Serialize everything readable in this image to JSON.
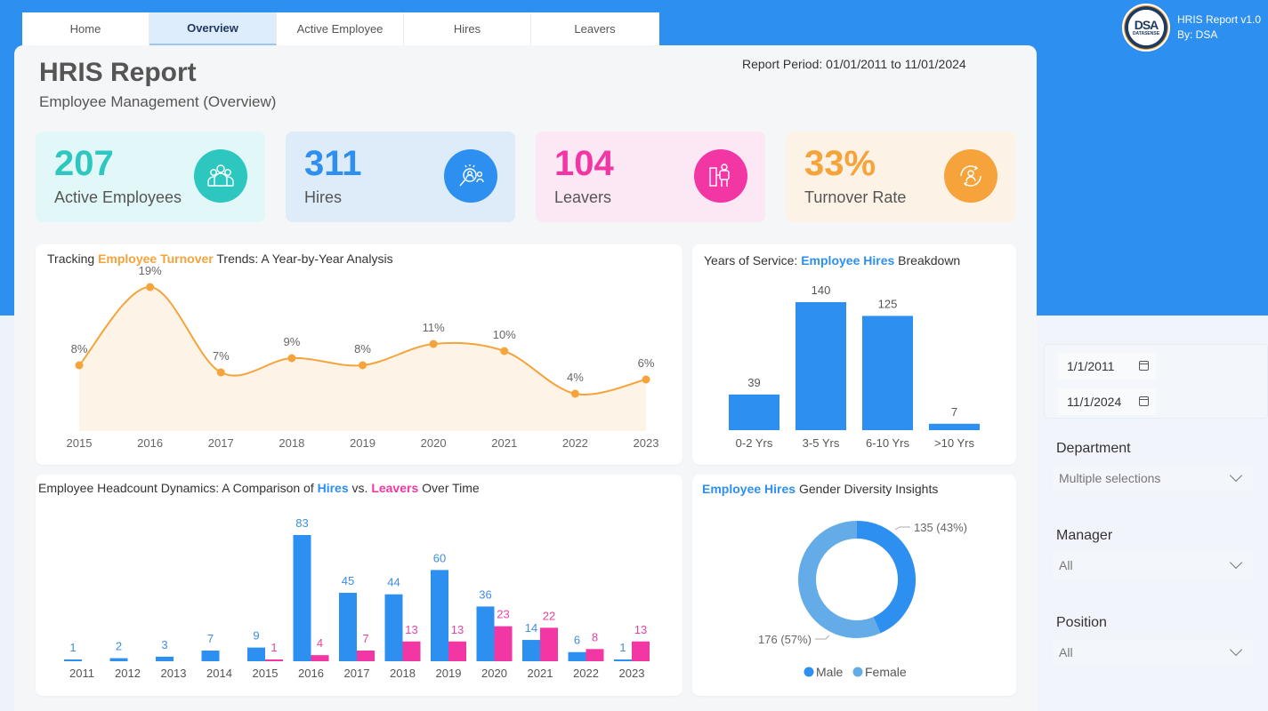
{
  "tabs": [
    {
      "label": "Home",
      "active": false
    },
    {
      "label": "Overview",
      "active": true
    },
    {
      "label": "Active Employee",
      "active": false
    },
    {
      "label": "Hires",
      "active": false
    },
    {
      "label": "Leavers",
      "active": false
    }
  ],
  "brand": {
    "logo_text": "DSA",
    "logo_sub": "DATASENSE",
    "app_name": "HRIS Report v1.0",
    "author": "By: DSA"
  },
  "header": {
    "title": "HRIS Report",
    "subtitle": "Employee Management (Overview)",
    "report_period": "Report Period: 01/01/2011 to 11/01/2024"
  },
  "kpis": [
    {
      "value": "207",
      "label": "Active Employees",
      "icon": "team-icon",
      "color": "#2ec7c0",
      "bg": "#e2f8f8"
    },
    {
      "value": "311",
      "label": "Hires",
      "icon": "recruit-search-icon",
      "color": "#2d8ff0",
      "bg": "#deebf9"
    },
    {
      "value": "104",
      "label": "Leavers",
      "icon": "exit-door-icon",
      "color": "#f236a3",
      "bg": "#fce8f4"
    },
    {
      "value": "33%",
      "label": "Turnover Rate",
      "icon": "turnover-cycle-icon",
      "color": "#f5a33a",
      "bg": "#fdf2e6"
    }
  ],
  "colors": {
    "hires": "#2d8ff0",
    "leavers": "#f236a3",
    "turnover": "#f5a33a",
    "female": "#63ace8"
  },
  "chart_data": [
    {
      "type": "area",
      "title_parts": [
        "Tracking ",
        "Employee Turnover",
        " Trends: A Year-by-Year Analysis"
      ],
      "categories": [
        "2015",
        "2016",
        "2017",
        "2018",
        "2019",
        "2020",
        "2021",
        "2022",
        "2023"
      ],
      "values": [
        8,
        19,
        7,
        9,
        8,
        11,
        10,
        4,
        6
      ],
      "labels": [
        "8%",
        "19%",
        "7%",
        "9%",
        "8%",
        "11%",
        "10%",
        "4%",
        "6%"
      ],
      "unit": "%",
      "grid": false
    },
    {
      "type": "bar",
      "title_parts": [
        "Years of Service: ",
        "Employee Hires",
        " Breakdown"
      ],
      "categories": [
        "0-2 Yrs",
        "3-5 Yrs",
        "6-10 Yrs",
        ">10 Yrs"
      ],
      "values": [
        39,
        140,
        125,
        7
      ],
      "grid": false
    },
    {
      "type": "bar",
      "title_parts": [
        "Employee Headcount Dynamics: A Comparison of ",
        "Hires",
        " vs. ",
        "Leavers",
        " Over Time"
      ],
      "categories": [
        "2011",
        "2012",
        "2013",
        "2014",
        "2015",
        "2016",
        "2017",
        "2018",
        "2019",
        "2020",
        "2021",
        "2022",
        "2023"
      ],
      "series": [
        {
          "name": "Hires",
          "values": [
            1,
            2,
            3,
            7,
            9,
            83,
            45,
            44,
            60,
            36,
            14,
            6,
            1
          ]
        },
        {
          "name": "Leavers",
          "values": [
            null,
            null,
            null,
            null,
            1,
            4,
            7,
            13,
            13,
            23,
            22,
            8,
            13
          ]
        }
      ],
      "grid": false
    },
    {
      "type": "pie",
      "title_parts": [
        "Employee Hires",
        " Gender Diversity Insights"
      ],
      "categories": [
        "Male",
        "Female"
      ],
      "values": [
        135,
        176
      ],
      "labels": [
        "135 (43%)",
        "176 (57%)"
      ],
      "legend": "bottom"
    }
  ],
  "filters": {
    "date_start": "1/1/2011",
    "date_end": "11/1/2024",
    "department": {
      "label": "Department",
      "value": "Multiple selections"
    },
    "manager": {
      "label": "Manager",
      "value": "All"
    },
    "position": {
      "label": "Position",
      "value": "All"
    }
  }
}
